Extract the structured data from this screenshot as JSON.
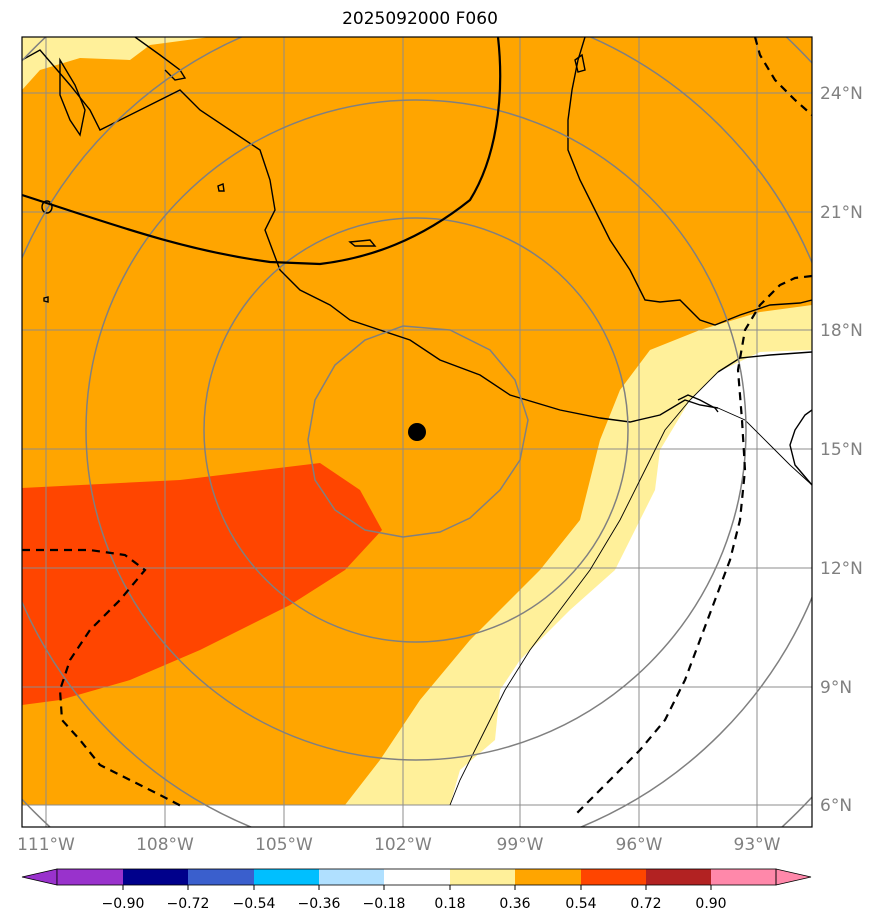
{
  "title": "2025092000 F060",
  "map": {
    "lon_ticks": [
      {
        "value": -111,
        "label": "111°W"
      },
      {
        "value": -108,
        "label": "108°W"
      },
      {
        "value": -105,
        "label": "105°W"
      },
      {
        "value": -102,
        "label": "102°W"
      },
      {
        "value": -99,
        "label": "99°W"
      },
      {
        "value": -96,
        "label": "96°W"
      },
      {
        "value": -93,
        "label": "93°W"
      }
    ],
    "lat_ticks": [
      {
        "value": 6,
        "label": "6°N"
      },
      {
        "value": 9,
        "label": "9°N"
      },
      {
        "value": 12,
        "label": "12°N"
      },
      {
        "value": 15,
        "label": "15°N"
      },
      {
        "value": 18,
        "label": "18°N"
      },
      {
        "value": 21,
        "label": "21°N"
      },
      {
        "value": 24,
        "label": "24°N"
      }
    ],
    "center_marker": {
      "lon": -101.7,
      "lat": 15.4
    },
    "range_rings_deg": [
      2.7,
      5.5,
      8.3,
      10.8,
      13.5
    ]
  },
  "colorbar": {
    "tick_labels": [
      "−0.90",
      "−0.72",
      "−0.54",
      "−0.36",
      "−0.18",
      "0.18",
      "0.36",
      "0.54",
      "0.72",
      "0.90"
    ],
    "colors": [
      "#9932cc",
      "#00008b",
      "#3a5fcd",
      "#00bfff",
      "#b0e0ff",
      "#ffffff",
      "#fff09a",
      "#ffa500",
      "#ff4500",
      "#b22222",
      "#ff88aa"
    ]
  }
}
